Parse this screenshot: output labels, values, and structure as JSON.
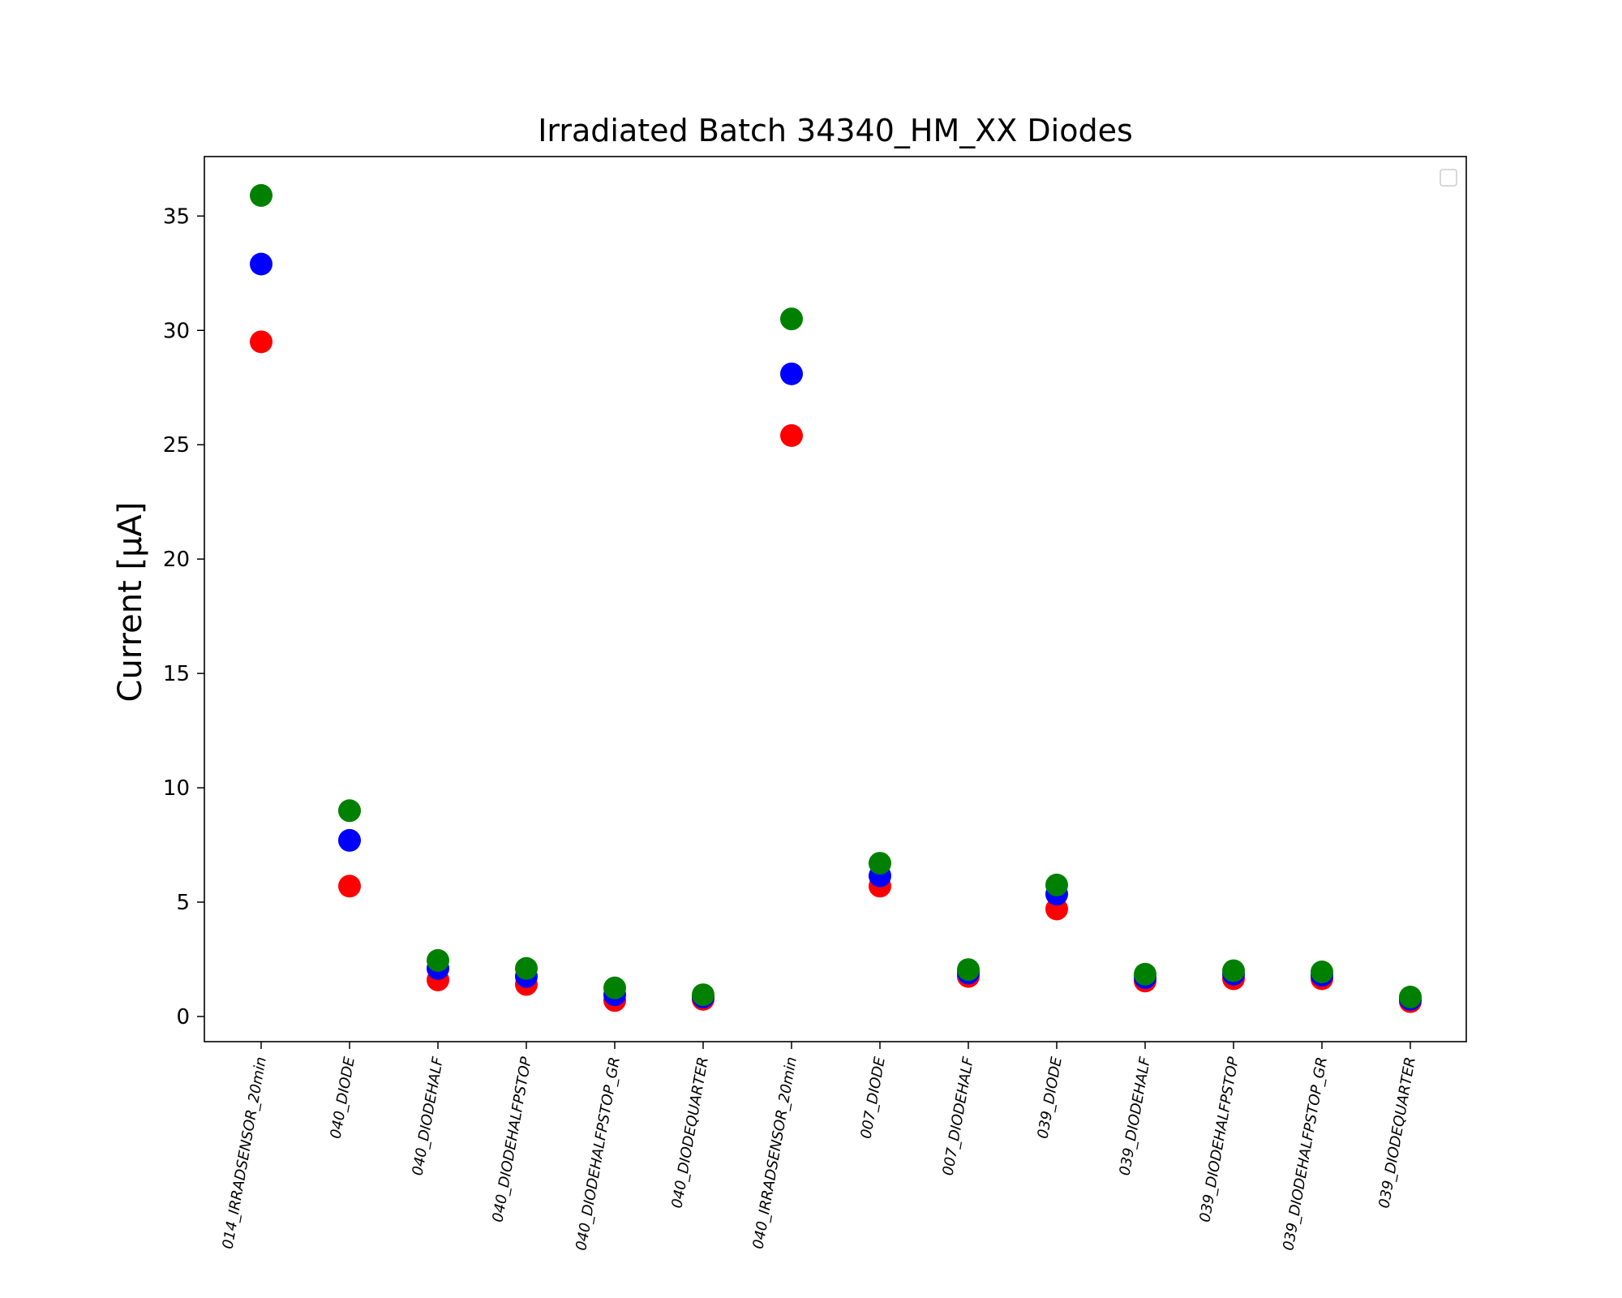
{
  "chart_data": {
    "type": "scatter",
    "title": "Irradiated Batch 34340_HM_XX Diodes",
    "xlabel": "",
    "ylabel": "Current [μA]",
    "ylim": [
      -1.1,
      37.6
    ],
    "yticks": [
      0,
      5,
      10,
      15,
      20,
      25,
      30,
      35
    ],
    "grid": false,
    "legend": {
      "placement": "top-right",
      "entries": []
    },
    "categories": [
      "014_IRRADSENSOR_20min",
      "040_DIODE",
      "040_DIODEHALF",
      "040_DIODEHALFPSTOP",
      "040_DIODEHALFPSTOP_GR",
      "040_DIODEQUARTER",
      "040_IRRADSENSOR_20min",
      "007_DIODE",
      "007_DIODEHALF",
      "039_DIODE",
      "039_DIODEHALF",
      "039_DIODEHALFPSTOP",
      "039_DIODEHALFPSTOP_GR",
      "039_DIODEQUARTER"
    ],
    "series": [
      {
        "color": "#ff0000",
        "values": [
          29.5,
          5.7,
          1.6,
          1.4,
          0.7,
          0.75,
          25.4,
          5.7,
          1.75,
          4.7,
          1.55,
          1.65,
          1.65,
          0.65
        ]
      },
      {
        "color": "#0000ff",
        "values": [
          32.9,
          7.7,
          2.1,
          1.75,
          0.95,
          0.85,
          28.1,
          6.15,
          1.9,
          5.35,
          1.7,
          1.85,
          1.8,
          0.75
        ]
      },
      {
        "color": "#008000",
        "values": [
          35.9,
          9.0,
          2.45,
          2.1,
          1.25,
          0.95,
          30.5,
          6.7,
          2.05,
          5.75,
          1.85,
          2.0,
          1.95,
          0.85
        ]
      }
    ]
  }
}
